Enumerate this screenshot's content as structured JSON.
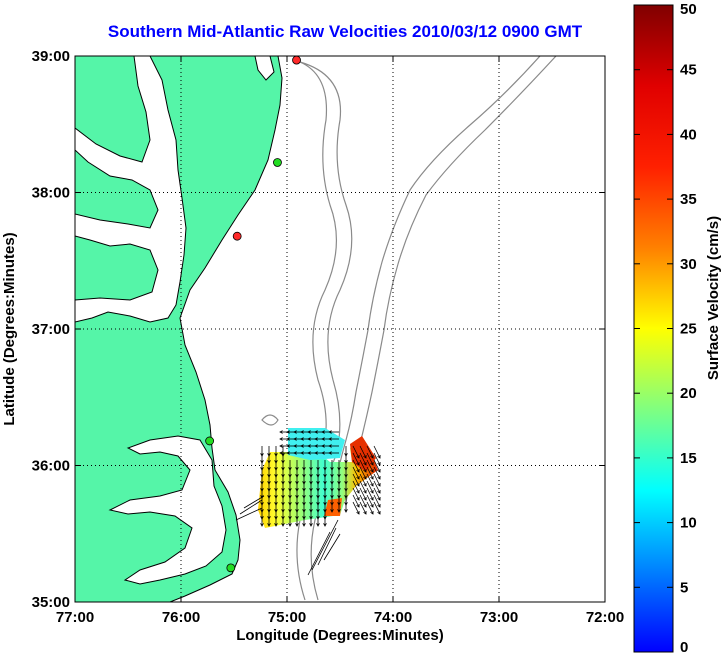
{
  "title": "Southern Mid-Atlantic Raw Velocities 2010/03/12 0900 GMT",
  "map": {
    "xlabel": "Longitude (Degrees:Minutes)",
    "ylabel": "Latitude (Degrees:Minutes)",
    "lon_range": [
      -77,
      -72
    ],
    "lat_range": [
      35,
      39
    ],
    "lon_ticks": [
      "77:00",
      "76:00",
      "75:00",
      "74:00",
      "73:00",
      "72:00"
    ],
    "lat_ticks": [
      "39:00",
      "38:00",
      "37:00",
      "36:00",
      "35:00"
    ],
    "land_color": "#55f5a8",
    "coast_color": "#000000",
    "bathymetry_color": "#8a8a8a",
    "grid": true
  },
  "colorbar": {
    "label": "Surface Velocity (cm/s)",
    "min": 0,
    "max": 50,
    "ticks": [
      "0",
      "5",
      "10",
      "15",
      "20",
      "25",
      "30",
      "35",
      "40",
      "45",
      "50"
    ],
    "colormap": "jet"
  },
  "stations": [
    {
      "lon": -74.91,
      "lat": 38.97,
      "color": "#ff2a2a"
    },
    {
      "lon": -75.09,
      "lat": 38.22,
      "color": "#22dd22"
    },
    {
      "lon": -75.47,
      "lat": 37.68,
      "color": "#ff2a2a"
    },
    {
      "lon": -75.73,
      "lat": 36.18,
      "color": "#22dd22"
    },
    {
      "lon": -75.53,
      "lat": 35.25,
      "color": "#22dd22"
    }
  ]
}
